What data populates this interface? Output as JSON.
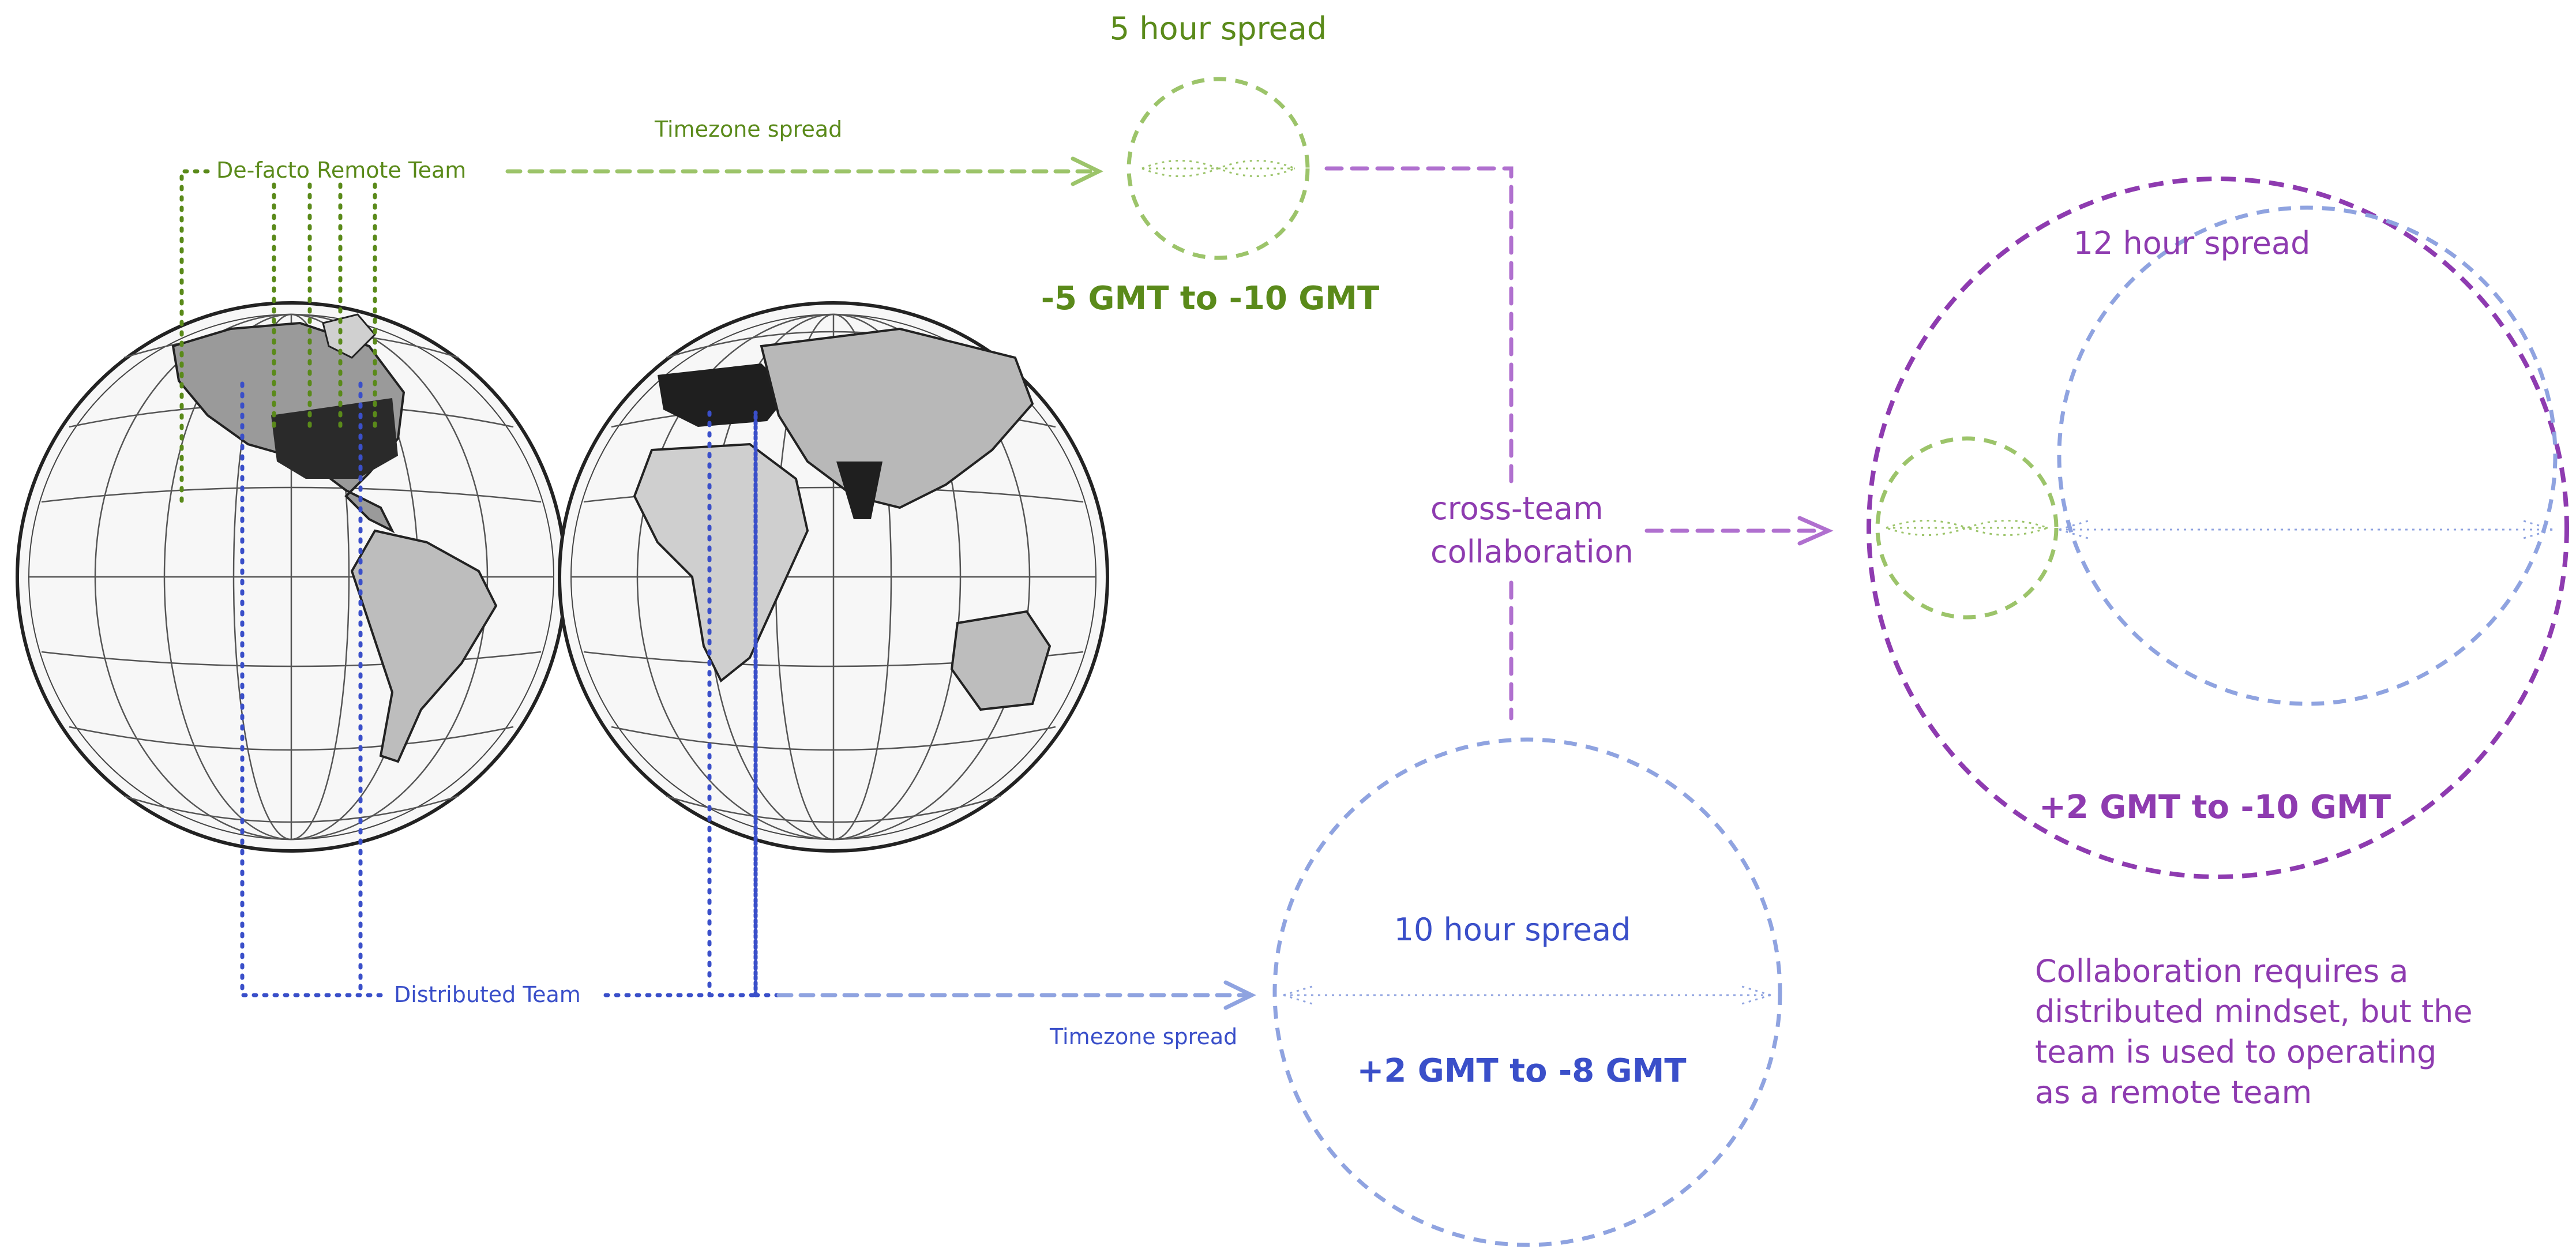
{
  "colors": {
    "green": "#5a8a1a",
    "green_light": "#9cc46a",
    "blue": "#3a4fc9",
    "blue_light": "#8fa3e0",
    "purple": "#8e3bb0",
    "purple_light": "#b070cf",
    "map_ink": "#333333"
  },
  "defacto": {
    "team_label": "De-facto Remote Team",
    "arrow_label": "Timezone spread",
    "spread_title": "5 hour spread",
    "range": "-5 GMT to -10 GMT"
  },
  "distributed": {
    "team_label": "Distributed Team",
    "arrow_label": "Timezone spread",
    "spread_title": "10 hour spread",
    "range": "+2 GMT to -8 GMT"
  },
  "combined": {
    "connector_label_line1": "cross-team",
    "connector_label_line2": "collaboration",
    "spread_title": "12 hour spread",
    "range": "+2 GMT to -10 GMT"
  },
  "note": {
    "lines": [
      "Collaboration requires a",
      "distributed mindset, but the",
      "team is used to operating",
      "as a remote team"
    ]
  },
  "map": {
    "icon": "world-map-icon"
  }
}
